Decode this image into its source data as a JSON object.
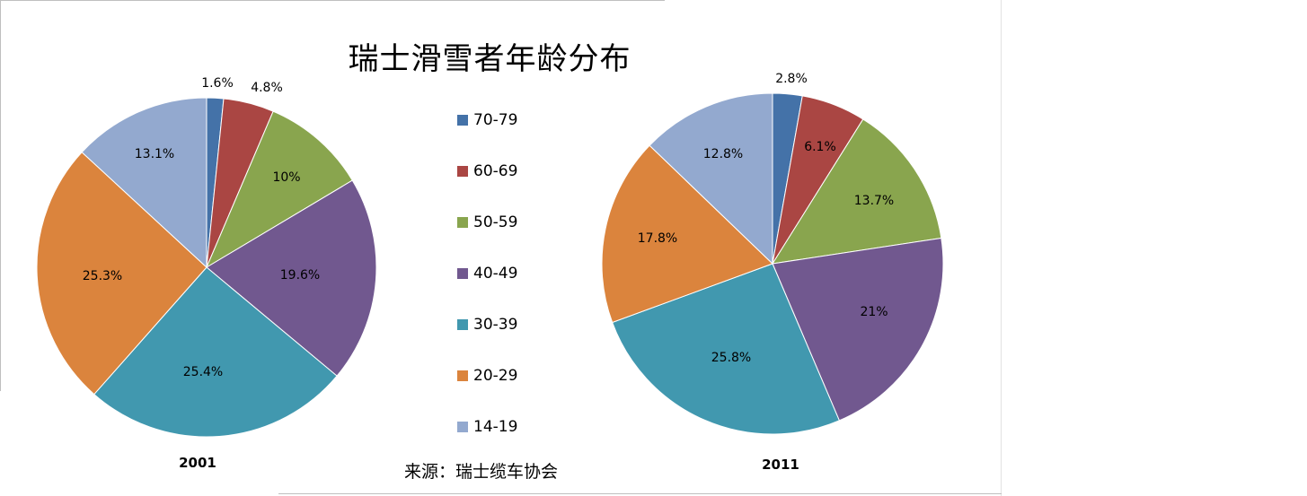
{
  "title": "瑞士滑雪者年龄分布",
  "source": "来源：瑞士缆车协会",
  "colors": {
    "70-79": "#4472a8",
    "60-69": "#aa4643",
    "50-59": "#89a54e",
    "40-49": "#71588f",
    "30-39": "#4198af",
    "20-29": "#db843d",
    "14-19": "#93a9cf"
  },
  "legend": [
    {
      "label": "70-79"
    },
    {
      "label": "60-69"
    },
    {
      "label": "50-59"
    },
    {
      "label": "40-49"
    },
    {
      "label": "30-39"
    },
    {
      "label": "20-29"
    },
    {
      "label": "14-19"
    }
  ],
  "chart_data": [
    {
      "type": "pie",
      "label": "2001",
      "categories": [
        "70-79",
        "60-69",
        "50-59",
        "40-49",
        "30-39",
        "20-29",
        "14-19"
      ],
      "values": [
        1.6,
        4.8,
        10,
        19.6,
        25.4,
        25.3,
        13.1
      ],
      "data_labels": [
        "1.6%",
        "4.8%",
        "10%",
        "19.6%",
        "25.4%",
        "25.3%",
        "13.1%"
      ],
      "start": "12 o'clock, clockwise"
    },
    {
      "type": "pie",
      "label": "2011",
      "categories": [
        "70-79",
        "60-69",
        "50-59",
        "40-49",
        "30-39",
        "20-29",
        "14-19"
      ],
      "values": [
        2.8,
        6.1,
        13.7,
        21,
        25.8,
        17.8,
        12.8
      ],
      "data_labels": [
        "2.8%",
        "6.1%",
        "13.7%",
        "21%",
        "25.8%",
        "17.8%",
        "12.8%"
      ],
      "start": "12 o'clock, clockwise"
    }
  ]
}
